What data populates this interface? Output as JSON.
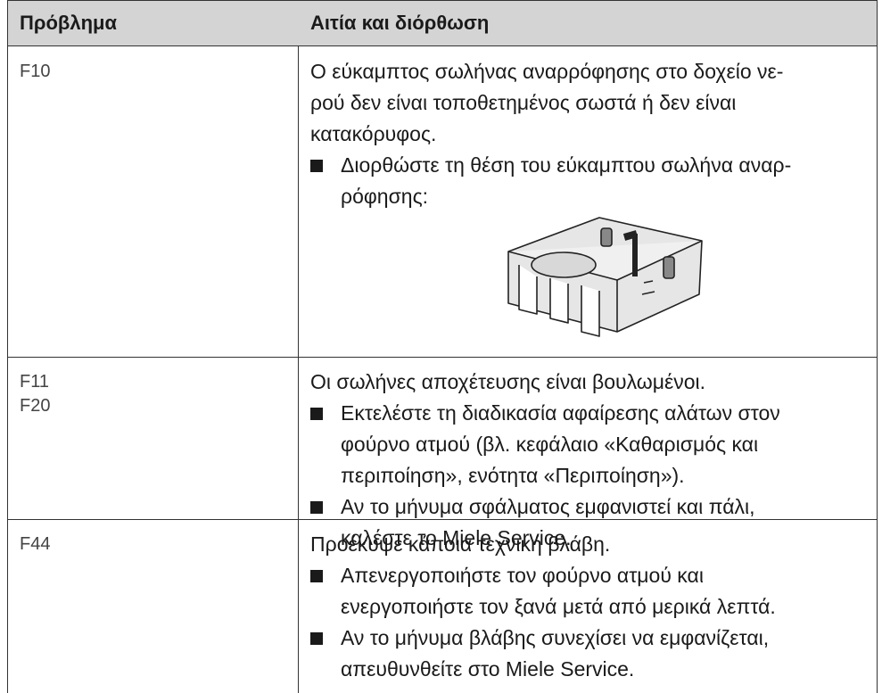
{
  "table": {
    "header": [
      "Πρόβλημα",
      "Αιτία και διόρθωση"
    ],
    "rows": [
      {
        "codes": [
          "F10"
        ],
        "cause": [
          "Ο εύκαμπτος σωλήνας αναρρόφησης στο δοχείο νε-",
          "ρού δεν είναι τοποθετημένος σωστά ή δεν είναι",
          "κατακόρυφος."
        ],
        "actions": [
          [
            "Διορθώστε τη θέση του εύκαμπτου σωλήνα αναρ-",
            "ρόφησης:"
          ]
        ]
      },
      {
        "codes": [
          "F11",
          "F20"
        ],
        "cause": [
          "Οι σωλήνες αποχέτευσης είναι βουλωμένοι."
        ],
        "actions": [
          [
            "Εκτελέστε τη διαδικασία αφαίρεσης αλάτων στον",
            "φούρνο ατμού (βλ. κεφάλαιο «Καθαρισμός και",
            "περιποίηση», ενότητα «Περιποίηση»)."
          ],
          [
            "Αν το μήνυμα σφάλματος εμφανιστεί και πάλι,",
            "καλέστε το Miele Service."
          ]
        ]
      },
      {
        "codes": [
          "F44"
        ],
        "cause": [
          "Προέκυψε κάποια τεχνική βλάβη."
        ],
        "actions": [
          [
            "Απενεργοποιήστε τον φούρνο ατμού και",
            "ενεργοποιήστε τον ξανά μετά από μερικά λεπτά."
          ],
          [
            "Αν το μήνυμα βλάβης συνεχίσει να εμφανίζεται,",
            "απευθυνθείτε στο Miele Service."
          ]
        ]
      }
    ]
  }
}
